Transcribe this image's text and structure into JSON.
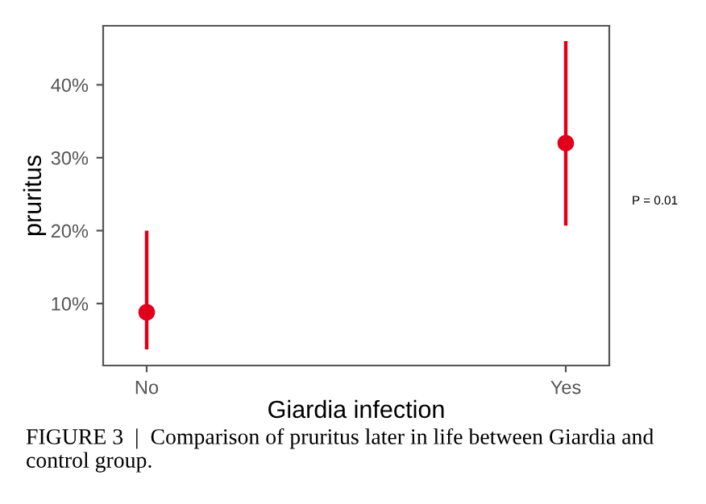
{
  "chart_data": {
    "type": "scatter",
    "xlabel": "Giardia infection",
    "ylabel": "pruritus",
    "categories": [
      "No",
      "Yes"
    ],
    "series": [
      {
        "color": "#e0001b",
        "values": [
          8.8,
          32.0
        ],
        "errors": [
          [
            3.7,
            20
          ],
          [
            20.7,
            46
          ]
        ]
      }
    ],
    "ylim": [
      1.5,
      48.1
    ],
    "yticks": [
      {
        "value": 10,
        "label": "10%"
      },
      {
        "value": 20,
        "label": "20%"
      },
      {
        "value": 30,
        "label": "30%"
      },
      {
        "value": 40,
        "label": "40%"
      }
    ],
    "marker": "circle",
    "grid": false,
    "annotations": [
      "P = 0.01",
      "FIGURE 3  |  Comparison of pruritus later in life between Giardia and control group."
    ]
  }
}
